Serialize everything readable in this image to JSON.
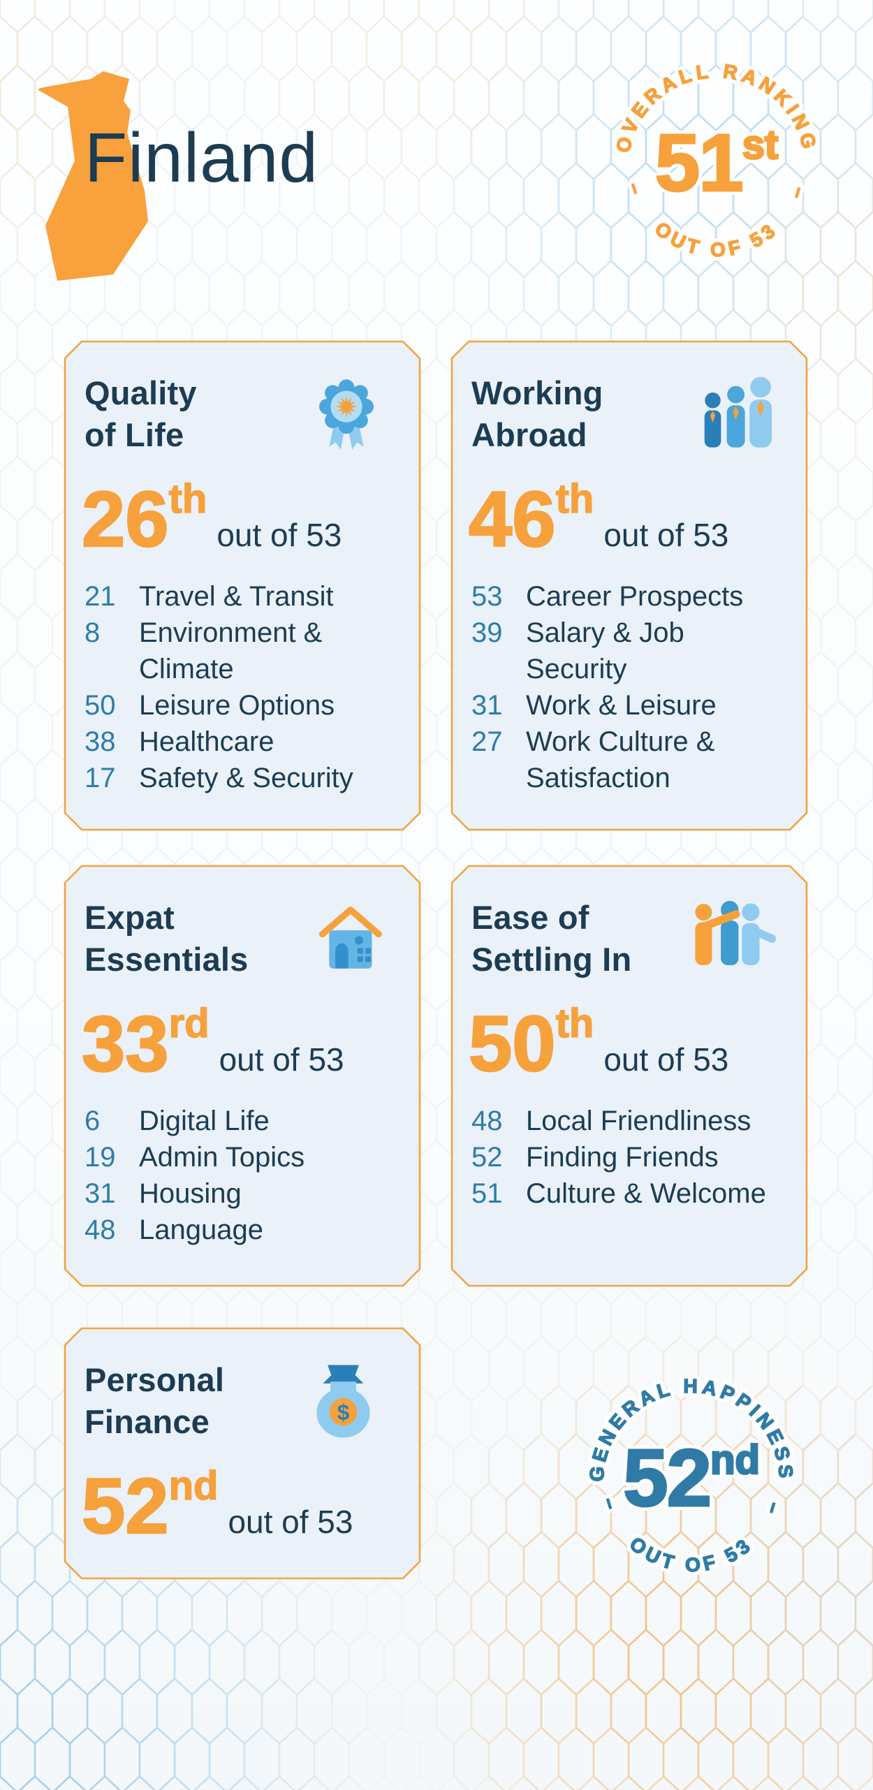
{
  "header": {
    "country": "Finland"
  },
  "overall_badge": {
    "arc_top": "OVERALL RANKING",
    "rank": "51",
    "ordinal": "st",
    "arc_bottom": "OUT OF 53",
    "arc_dash": "–",
    "color": "#F6A13C"
  },
  "happiness_badge": {
    "arc_top": "GENERAL HAPPINESS",
    "rank": "52",
    "ordinal": "nd",
    "arc_bottom": "OUT OF 53",
    "arc_dash": "–",
    "color": "#2F7BA6"
  },
  "cards": [
    {
      "id": "quality-of-life",
      "icon": "award",
      "title_lines": [
        "Quality",
        "of Life"
      ],
      "rank": "26",
      "ordinal": "th",
      "suffix": "out of 53",
      "items": [
        [
          "21",
          "Travel & Transit"
        ],
        [
          "8",
          "Environment & Climate"
        ],
        [
          "50",
          "Leisure Options"
        ],
        [
          "38",
          "Healthcare"
        ],
        [
          "17",
          "Safety & Security"
        ]
      ]
    },
    {
      "id": "working-abroad",
      "icon": "people",
      "title_lines": [
        "Working",
        "Abroad"
      ],
      "rank": "46",
      "ordinal": "th",
      "suffix": "out of 53",
      "items": [
        [
          "53",
          "Career Prospects"
        ],
        [
          "39",
          "Salary & Job Security"
        ],
        [
          "31",
          "Work & Leisure"
        ],
        [
          "27",
          "Work Culture & Satisfaction"
        ]
      ]
    },
    {
      "id": "expat-essentials",
      "icon": "house",
      "title_lines": [
        "Expat",
        "Essentials"
      ],
      "rank": "33",
      "ordinal": "rd",
      "suffix": "out of 53",
      "items": [
        [
          "6",
          "Digital Life"
        ],
        [
          "19",
          "Admin Topics"
        ],
        [
          "31",
          "Housing"
        ],
        [
          "48",
          "Language"
        ]
      ]
    },
    {
      "id": "ease-of-settling-in",
      "icon": "friends",
      "title_lines": [
        "Ease of",
        "Settling In"
      ],
      "rank": "50",
      "ordinal": "th",
      "suffix": "out of 53",
      "items": [
        [
          "48",
          "Local Friendliness"
        ],
        [
          "52",
          "Finding Friends"
        ],
        [
          "51",
          "Culture & Welcome"
        ]
      ]
    },
    {
      "id": "personal-finance",
      "icon": "bag",
      "title_lines": [
        "Personal",
        "Finance"
      ],
      "rank": "52",
      "ordinal": "nd",
      "suffix": "out of 53",
      "items": []
    }
  ],
  "colors": {
    "orange": "#F6A13C",
    "navy": "#1C3C53",
    "blue": "#2E7CA8",
    "card_bg": "#EAF1F8",
    "card_border": "#F2A43E",
    "icon_dark_blue": "#2B7FB8",
    "icon_mid_blue": "#4BA6DB",
    "icon_light_blue": "#8FCBEF",
    "icon_pale_blue": "#B3DCF5",
    "icon_window_blue": "#3490CC"
  }
}
